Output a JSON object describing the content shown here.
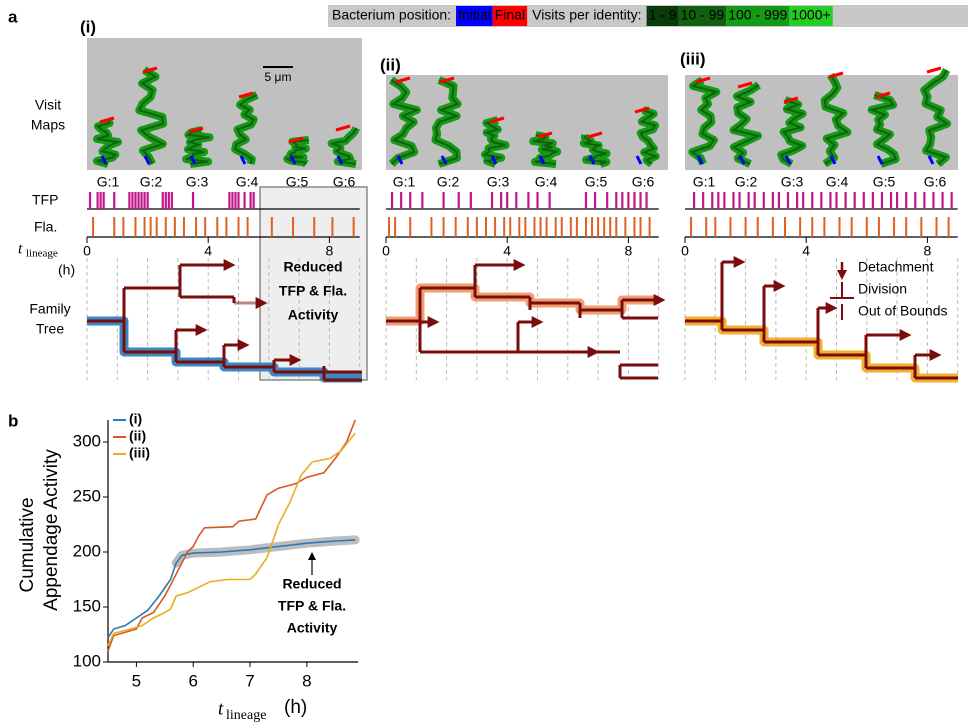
{
  "panel_a": {
    "label": "a",
    "legend": {
      "position_title": "Bacterium position:",
      "initial": "Initial",
      "final": "Final",
      "initial_color": "#0000ff",
      "final_color": "#ff0000",
      "visits_title": "Visits per identity:",
      "visit_bins": [
        "1 - 9",
        "10 - 99",
        "100 - 999",
        "1000+"
      ],
      "visit_colors": [
        "#0a3a0a",
        "#0f600f",
        "#149a14",
        "#24cc24"
      ]
    },
    "row_labels": {
      "visit_maps": [
        "Visit",
        "Maps"
      ],
      "tfp": "TFP",
      "fla": "Fla.",
      "time": {
        "symbol": "t",
        "subscript": "lineage",
        "unit": "(h)"
      },
      "family_tree": [
        "Family",
        "Tree"
      ]
    },
    "scale_bar": "5 μm",
    "tfp_color": "#c0168a",
    "fla_color": "#e06020",
    "axis": {
      "xlim": [
        0,
        9
      ],
      "xticks": [
        0,
        4,
        8
      ]
    },
    "panels": [
      {
        "label": "(i)",
        "generations": [
          "G:1",
          "G:2",
          "G:3",
          "G:4",
          "G:5",
          "G:6"
        ],
        "tfp_events": [
          0.1,
          0.35,
          0.45,
          0.55,
          0.9,
          1.4,
          1.5,
          1.6,
          1.7,
          1.8,
          1.9,
          2.0,
          2.5,
          2.6,
          2.7,
          2.8,
          3.5,
          4.7,
          4.8,
          4.9,
          5.0,
          5.2,
          5.4,
          5.5
        ],
        "fla_events": [
          0.2,
          0.9,
          1.2,
          1.6,
          1.9,
          2.1,
          2.3,
          2.6,
          2.9,
          3.2,
          3.6,
          3.9,
          4.3,
          4.6,
          5.0,
          5.3,
          6.1,
          6.8,
          7.5,
          8.1,
          8.8
        ]
      },
      {
        "label": "(ii)",
        "generations": [
          "G:1",
          "G:2",
          "G:3",
          "G:4",
          "G:5",
          "G:6"
        ],
        "tfp_events": [
          0.2,
          0.5,
          0.8,
          1.2,
          1.9,
          2.4,
          2.8,
          3.5,
          3.8,
          4.0,
          4.3,
          4.7,
          5.0,
          5.4,
          6.6,
          6.9,
          7.3,
          7.6,
          7.8,
          8.0,
          8.2,
          8.4,
          8.6
        ],
        "fla_events": [
          0.1,
          0.3,
          0.8,
          1.5,
          1.9,
          2.3,
          2.7,
          3.0,
          3.3,
          3.6,
          3.9,
          4.1,
          4.4,
          4.6,
          4.9,
          5.1,
          5.3,
          5.6,
          5.8,
          6.1,
          6.3,
          6.6,
          6.8,
          7.0,
          7.2,
          7.4,
          7.6,
          7.9,
          8.2,
          8.4,
          8.7
        ]
      },
      {
        "label": "(iii)",
        "generations": [
          "G:1",
          "G:2",
          "G:3",
          "G:4",
          "G:5",
          "G:6"
        ],
        "tfp_events": [
          0.3,
          0.6,
          0.9,
          1.1,
          1.3,
          1.6,
          1.8,
          2.1,
          2.3,
          2.6,
          2.9,
          3.1,
          3.4,
          3.7,
          3.9,
          4.2,
          4.5,
          4.8,
          5.0,
          5.3,
          5.6,
          5.9,
          6.2,
          6.5,
          6.8,
          7.0,
          7.3,
          7.6,
          7.9,
          8.2,
          8.5,
          8.8
        ],
        "fla_events": [
          0.2,
          0.7,
          1.0,
          1.5,
          2.0,
          2.4,
          2.9,
          3.3,
          3.8,
          4.2,
          4.6,
          5.1,
          5.5,
          6.0,
          6.4,
          6.9,
          7.3,
          7.8,
          8.3,
          8.7
        ]
      }
    ],
    "annotation": [
      "Reduced",
      "TFP & Fla.",
      "Activity"
    ],
    "tree_legend": [
      "Detachment",
      "Division",
      "Out of Bounds"
    ]
  },
  "chart_data": {
    "type": "line",
    "label": "b",
    "ylabel": [
      "Cumulative",
      "Appendage Activity"
    ],
    "xlabel": {
      "symbol": "t",
      "subscript": "lineage",
      "unit": "(h)"
    },
    "xlim": [
      4.5,
      8.9
    ],
    "ylim": [
      100,
      320
    ],
    "xticks": [
      5,
      6,
      7,
      8
    ],
    "yticks": [
      100,
      150,
      200,
      250,
      300
    ],
    "highlight": {
      "series": 0,
      "xrange": [
        5.7,
        8.85
      ],
      "color": "#bdbdbd"
    },
    "annotation": [
      "Reduced",
      "TFP & Fla.",
      "Activity"
    ],
    "series": [
      {
        "name": "(i)",
        "color": "#2a78b8",
        "x": [
          4.5,
          4.6,
          4.8,
          5.0,
          5.2,
          5.4,
          5.6,
          5.7,
          5.8,
          6.0,
          6.5,
          7.0,
          7.5,
          8.0,
          8.5,
          8.85
        ],
        "values": [
          122,
          130,
          133,
          140,
          147,
          160,
          175,
          190,
          197,
          199,
          200,
          202,
          205,
          208,
          210,
          211
        ]
      },
      {
        "name": "(ii)",
        "color": "#d45a25",
        "x": [
          4.5,
          4.6,
          5.0,
          5.1,
          5.3,
          5.5,
          5.7,
          5.9,
          6.0,
          6.1,
          6.2,
          6.7,
          6.8,
          7.1,
          7.3,
          7.5,
          7.8,
          8.0,
          8.3,
          8.5,
          8.7,
          8.85
        ],
        "values": [
          110,
          124,
          130,
          140,
          145,
          160,
          180,
          200,
          205,
          215,
          222,
          223,
          228,
          230,
          252,
          258,
          262,
          268,
          272,
          285,
          300,
          320
        ]
      },
      {
        "name": "(iii)",
        "color": "#e8b020",
        "x": [
          4.5,
          4.6,
          4.9,
          5.1,
          5.3,
          5.5,
          5.6,
          5.7,
          5.9,
          6.1,
          6.3,
          6.6,
          7.0,
          7.1,
          7.3,
          7.5,
          7.7,
          7.9,
          8.1,
          8.4,
          8.6,
          8.85
        ],
        "values": [
          115,
          126,
          130,
          133,
          140,
          145,
          148,
          160,
          163,
          168,
          173,
          175,
          175,
          180,
          195,
          225,
          245,
          270,
          282,
          285,
          292,
          308
        ]
      }
    ]
  }
}
